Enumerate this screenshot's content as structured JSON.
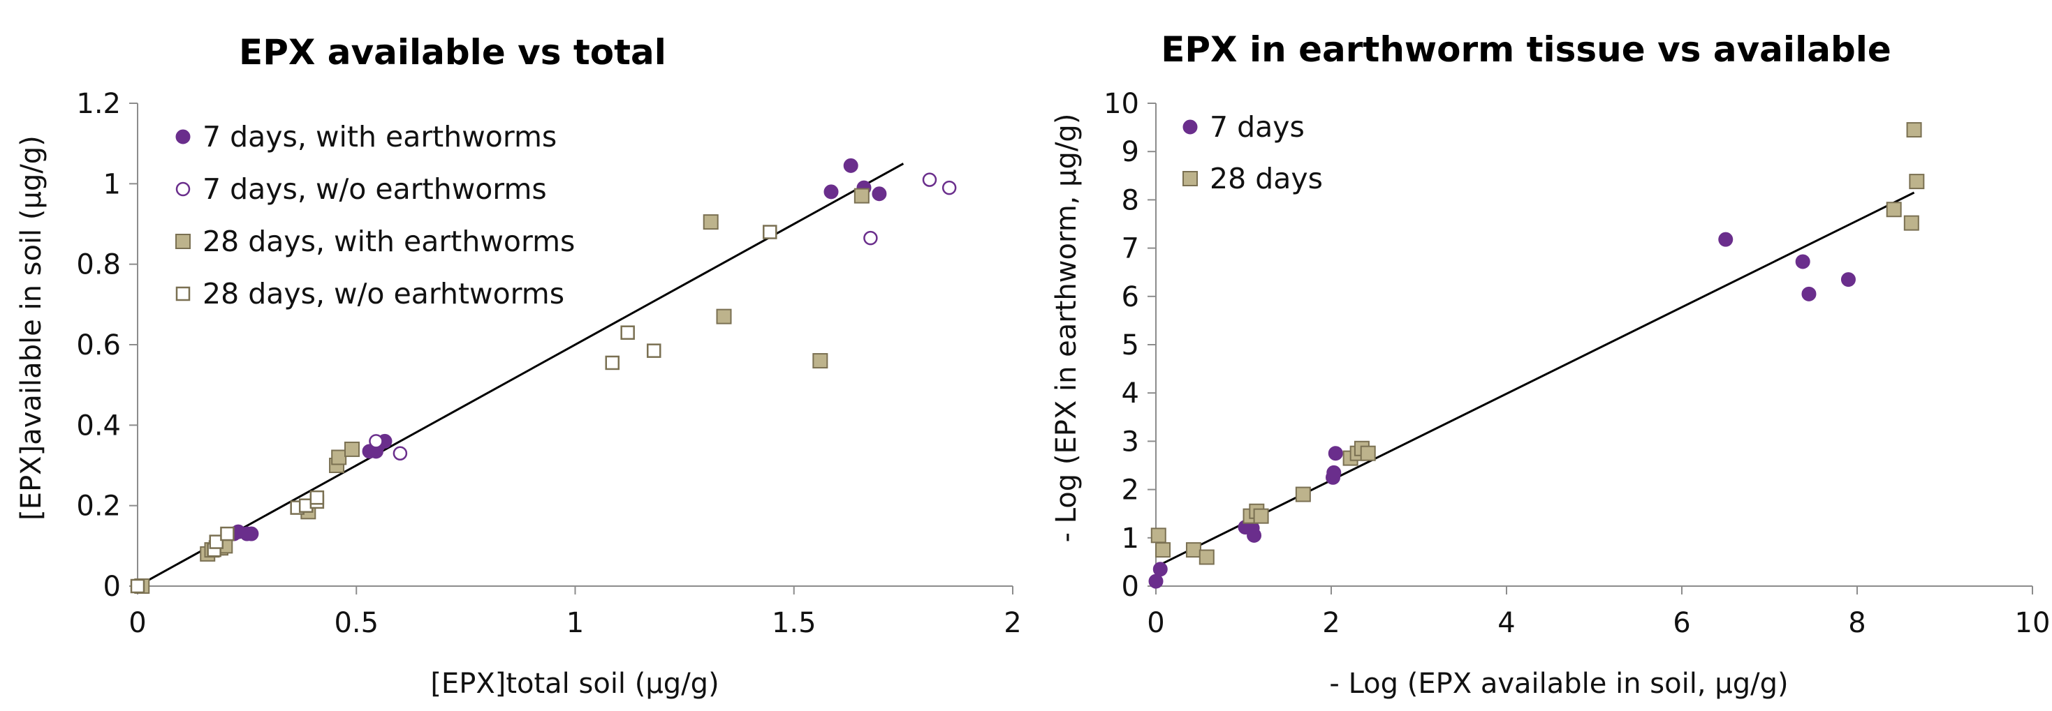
{
  "colors": {
    "purple": "#6a2e8c",
    "tan_fill": "#bdb38c",
    "tan_stroke": "#7a7052",
    "axis": "#8c8c8c",
    "fit_line": "#000000"
  },
  "chart_data": [
    {
      "type": "scatter",
      "title": "EPX available vs total",
      "xlabel": "[EPX]total soil (µg/g)",
      "ylabel": "[EPX]available in soil (µg/g)",
      "xlim": [
        0,
        2
      ],
      "ylim": [
        0,
        1.2
      ],
      "xticks": [
        0,
        0.5,
        1,
        1.5,
        2
      ],
      "xtick_labels": [
        "0",
        "0.5",
        "1",
        "1.5",
        "2"
      ],
      "yticks": [
        0,
        0.2,
        0.4,
        0.6,
        0.8,
        1,
        1.2
      ],
      "ytick_labels": [
        "0",
        "0.2",
        "0.4",
        "0.6",
        "0.8",
        "1",
        "1.2"
      ],
      "grid": false,
      "legend_position": "top-left",
      "trendline": {
        "x": [
          0,
          1.75
        ],
        "y": [
          0,
          1.05
        ]
      },
      "series": [
        {
          "name": "7 days, with earthworms",
          "marker": "circle-filled",
          "points": [
            [
              0.22,
              0.13
            ],
            [
              0.23,
              0.135
            ],
            [
              0.25,
              0.13
            ],
            [
              0.26,
              0.13
            ],
            [
              0.53,
              0.335
            ],
            [
              0.545,
              0.335
            ],
            [
              0.55,
              0.35
            ],
            [
              0.565,
              0.36
            ],
            [
              1.585,
              0.98
            ],
            [
              1.63,
              1.045
            ],
            [
              1.66,
              0.99
            ],
            [
              1.695,
              0.975
            ]
          ]
        },
        {
          "name": "7 days, w/o earthworms",
          "marker": "circle-open",
          "points": [
            [
              0.545,
              0.36
            ],
            [
              0.6,
              0.33
            ],
            [
              1.675,
              0.865
            ],
            [
              1.81,
              1.01
            ],
            [
              1.855,
              0.99
            ]
          ]
        },
        {
          "name": "28 days, with earthworms",
          "marker": "square-filled",
          "points": [
            [
              0.01,
              0.0
            ],
            [
              0.16,
              0.08
            ],
            [
              0.17,
              0.09
            ],
            [
              0.18,
              0.095
            ],
            [
              0.19,
              0.095
            ],
            [
              0.2,
              0.1
            ],
            [
              0.39,
              0.185
            ],
            [
              0.455,
              0.3
            ],
            [
              0.46,
              0.32
            ],
            [
              0.49,
              0.34
            ],
            [
              1.31,
              0.905
            ],
            [
              1.34,
              0.67
            ],
            [
              1.56,
              0.56
            ],
            [
              1.655,
              0.97
            ]
          ]
        },
        {
          "name": "28 days, w/o earhtworms",
          "marker": "square-open",
          "points": [
            [
              0.0,
              0.0
            ],
            [
              0.175,
              0.09
            ],
            [
              0.18,
              0.11
            ],
            [
              0.205,
              0.13
            ],
            [
              0.365,
              0.195
            ],
            [
              0.385,
              0.2
            ],
            [
              0.41,
              0.21
            ],
            [
              0.41,
              0.22
            ],
            [
              1.085,
              0.555
            ],
            [
              1.12,
              0.63
            ],
            [
              1.18,
              0.585
            ],
            [
              1.445,
              0.88
            ]
          ]
        }
      ]
    },
    {
      "type": "scatter",
      "title": "EPX in earthworm tissue vs available",
      "xlabel": "- Log (EPX available in soil, µg/g)",
      "ylabel": "- Log (EPX in earthworm, µg/g)",
      "xlim": [
        0,
        10
      ],
      "ylim": [
        0,
        10
      ],
      "xticks": [
        0,
        2,
        4,
        6,
        8,
        10
      ],
      "xtick_labels": [
        "0",
        "2",
        "4",
        "6",
        "8",
        "10"
      ],
      "yticks": [
        0,
        1,
        2,
        3,
        4,
        5,
        6,
        7,
        8,
        9,
        10
      ],
      "ytick_labels": [
        "0",
        "1",
        "2",
        "3",
        "4",
        "5",
        "6",
        "7",
        "8",
        "9",
        "10"
      ],
      "grid": false,
      "legend_position": "top-left",
      "trendline": {
        "x": [
          0,
          8.65
        ],
        "y": [
          0.4,
          8.15
        ]
      },
      "series": [
        {
          "name": "7 days",
          "marker": "circle-filled",
          "points": [
            [
              0.0,
              0.1
            ],
            [
              0.05,
              0.35
            ],
            [
              1.02,
              1.22
            ],
            [
              1.1,
              1.2
            ],
            [
              1.12,
              1.05
            ],
            [
              2.02,
              2.25
            ],
            [
              2.03,
              2.35
            ],
            [
              2.05,
              2.75
            ],
            [
              6.5,
              7.18
            ],
            [
              7.38,
              6.72
            ],
            [
              7.45,
              6.05
            ],
            [
              7.9,
              6.35
            ]
          ]
        },
        {
          "name": "28 days",
          "marker": "square-filled",
          "points": [
            [
              0.03,
              1.05
            ],
            [
              0.08,
              0.75
            ],
            [
              0.43,
              0.75
            ],
            [
              0.58,
              0.6
            ],
            [
              1.08,
              1.45
            ],
            [
              1.15,
              1.55
            ],
            [
              1.2,
              1.45
            ],
            [
              1.68,
              1.9
            ],
            [
              2.22,
              2.65
            ],
            [
              2.3,
              2.75
            ],
            [
              2.35,
              2.85
            ],
            [
              2.42,
              2.75
            ],
            [
              8.42,
              7.8
            ],
            [
              8.62,
              7.52
            ],
            [
              8.65,
              9.45
            ],
            [
              8.68,
              8.38
            ]
          ]
        }
      ]
    }
  ]
}
